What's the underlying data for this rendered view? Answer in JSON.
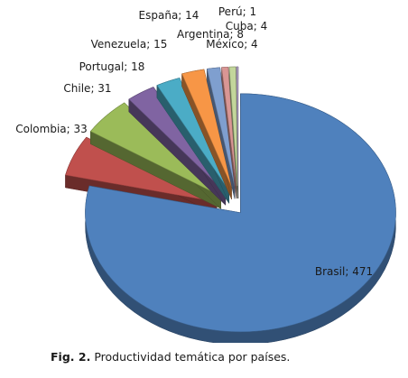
{
  "caption": {
    "label": "Fig. 2.",
    "text": "Productividad temática por países."
  },
  "chart_data": {
    "type": "pie",
    "style": "3d-exploded",
    "title": "",
    "categories": [
      "Brasil",
      "Colombia",
      "Chile",
      "Portugal",
      "Venezuela",
      "España",
      "Argentina",
      "México",
      "Cuba",
      "Perú"
    ],
    "values": [
      471,
      33,
      31,
      18,
      15,
      14,
      8,
      4,
      4,
      1
    ],
    "labels": [
      "Brasil; 471",
      "Colombia; 33",
      "Chile; 31",
      "Portugal; 18",
      "Venezuela; 15",
      "España; 14",
      "Argentina; 8",
      "México; 4",
      "Cuba; 4",
      "Perú; 1"
    ],
    "colors": [
      "#4F81BD",
      "#C0504D",
      "#9BBB59",
      "#8064A2",
      "#4BACC6",
      "#F79646",
      "#7F9FCF",
      "#D99694",
      "#C3D69B",
      "#B3A2C7"
    ],
    "legend": "none"
  }
}
